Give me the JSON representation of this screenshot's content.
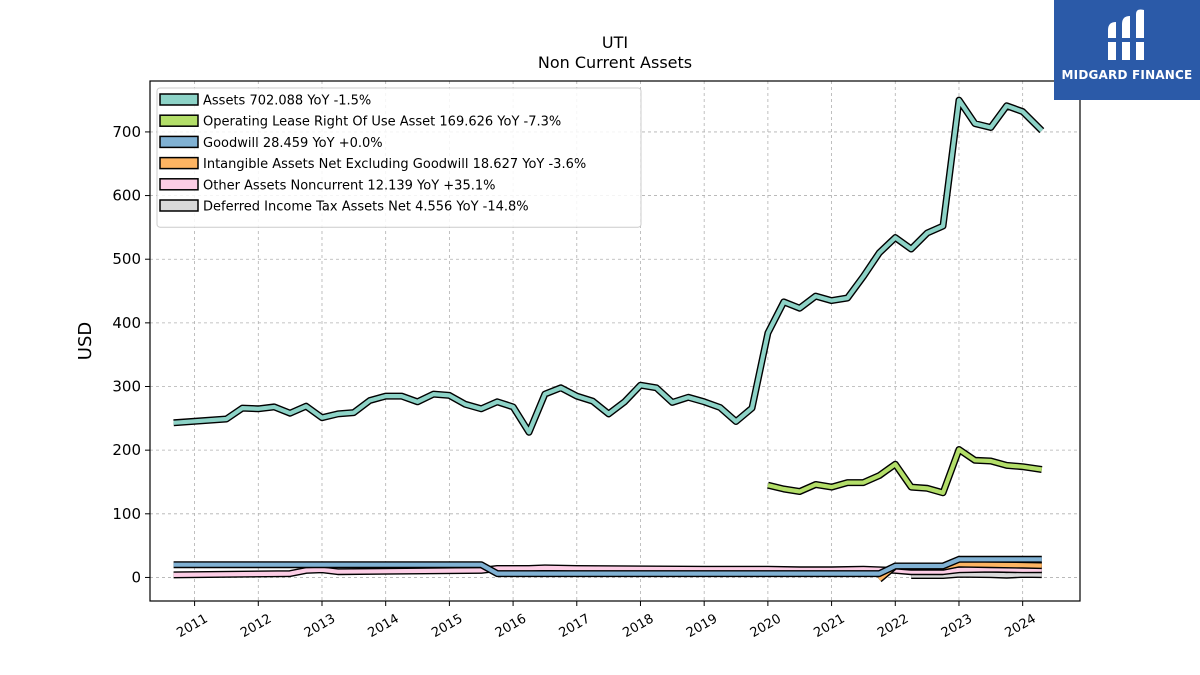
{
  "chart_data": {
    "type": "line",
    "title": "UTI",
    "subtitle": "Non Current  Assets",
    "ylabel": "USD",
    "xlabel": "",
    "ylim": [
      -37,
      780
    ],
    "xlim": [
      2010.3,
      2024.9
    ],
    "yticks": [
      0,
      100,
      200,
      300,
      400,
      500,
      600,
      700
    ],
    "xticks": [
      "2011",
      "2012",
      "2013",
      "2014",
      "2015",
      "2016",
      "2017",
      "2018",
      "2019",
      "2020",
      "2021",
      "2022",
      "2023",
      "2024"
    ],
    "grid": true,
    "legend_position": "top-left",
    "series": [
      {
        "name": "Assets",
        "legend": "Assets  702.088 YoY -1.5%",
        "color": "#8dd3c7",
        "x": [
          2010.67,
          2011.5,
          2011.75,
          2012.0,
          2012.25,
          2012.5,
          2012.75,
          2013.0,
          2013.25,
          2013.5,
          2013.75,
          2014.0,
          2014.25,
          2014.5,
          2014.75,
          2015.0,
          2015.25,
          2015.5,
          2015.75,
          2016.0,
          2016.25,
          2016.5,
          2016.75,
          2017.0,
          2017.25,
          2017.5,
          2017.75,
          2018.0,
          2018.25,
          2018.5,
          2018.75,
          2019.0,
          2019.25,
          2019.5,
          2019.75,
          2020.0,
          2020.25,
          2020.5,
          2020.75,
          2021.0,
          2021.25,
          2021.5,
          2021.75,
          2022.0,
          2022.25,
          2022.5,
          2022.75,
          2023.0,
          2023.25,
          2023.5,
          2023.75,
          2024.0,
          2024.3
        ],
        "y": [
          243,
          249,
          266,
          265,
          268,
          258,
          269,
          251,
          257,
          259,
          278,
          285,
          285,
          276,
          288,
          286,
          272,
          265,
          276,
          268,
          228,
          288,
          298,
          285,
          277,
          257,
          276,
          302,
          298,
          275,
          283,
          276,
          267,
          245,
          266,
          384,
          433,
          423,
          442,
          435,
          439,
          473,
          510,
          534,
          516,
          541,
          552,
          750,
          713,
          707,
          741,
          732,
          702.088
        ]
      },
      {
        "name": "Operating Lease Right Of Use Asset",
        "legend": "Operating Lease Right Of Use Asset  169.626 YoY -7.3%",
        "color": "#b3de69",
        "x": [
          2020.0,
          2020.25,
          2020.5,
          2020.75,
          2021.0,
          2021.25,
          2021.5,
          2021.75,
          2022.0,
          2022.25,
          2022.5,
          2022.75,
          2023.0,
          2023.25,
          2023.5,
          2023.75,
          2024.0,
          2024.3
        ],
        "y": [
          145,
          139,
          135,
          146,
          142,
          149,
          149,
          160,
          178,
          142,
          140,
          133,
          201,
          184,
          183,
          176,
          174,
          169.626
        ]
      },
      {
        "name": "Goodwill",
        "legend": "Goodwill  28.459 YoY +0.0%",
        "color": "#80b1d3",
        "x": [
          2010.67,
          2015.5,
          2015.75,
          2021.75,
          2022.0,
          2022.75,
          2023.0,
          2024.3
        ],
        "y": [
          20,
          20,
          6,
          6,
          18,
          18,
          28.459,
          28.459
        ]
      },
      {
        "name": "Intangible Assets Net Excluding Goodwill",
        "legend": "Intangible Assets Net Excluding Goodwill  18.627 YoY -3.6%",
        "color": "#fdb462",
        "x": [
          2021.75,
          2022.0,
          2022.25,
          2022.5,
          2022.75,
          2023.0,
          2023.5,
          2024.0,
          2024.3
        ],
        "y": [
          -3,
          18,
          16,
          16,
          16,
          21,
          20,
          19.3,
          18.627
        ]
      },
      {
        "name": "Other Assets Noncurrent",
        "legend": "Other Assets Noncurrent  12.139 YoY +35.1%",
        "color": "#fccde5",
        "x": [
          2010.67,
          2012.5,
          2012.75,
          2013.0,
          2013.25,
          2015.5,
          2015.75,
          2016.0,
          2016.25,
          2016.5,
          2017.0,
          2019.0,
          2020.0,
          2020.5,
          2021.0,
          2021.5,
          2022.0,
          2022.25,
          2022.75,
          2023.0,
          2023.5,
          2024.0,
          2024.3
        ],
        "y": [
          4,
          6,
          11,
          12,
          9,
          11,
          14,
          14,
          14,
          15,
          14,
          13,
          13,
          12,
          12,
          13,
          11,
          9,
          9,
          12,
          13,
          12,
          12.139
        ]
      },
      {
        "name": "Deferred Income Tax Assets Net",
        "legend": "Deferred Income Tax Assets Net  4.556 YoY -14.8%",
        "color": "#d9d9d9",
        "x": [
          2022.25,
          2022.75,
          2023.0,
          2023.5,
          2023.75,
          2024.0,
          2024.3
        ],
        "y": [
          3,
          3,
          5,
          4.5,
          3.5,
          4.8,
          4.556
        ]
      }
    ]
  },
  "logo": {
    "text": "MIDGARD FINANCE"
  }
}
